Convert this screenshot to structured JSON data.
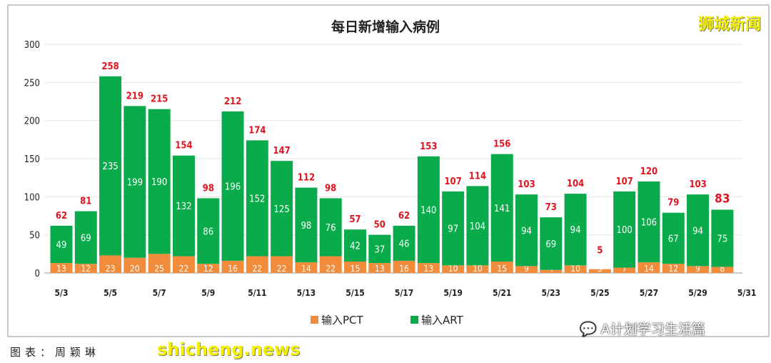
{
  "chart_data": {
    "type": "bar",
    "stacked": true,
    "title": "每日新增输入病例",
    "categories": [
      "5/3",
      "5/4",
      "5/5",
      "5/6",
      "5/7",
      "5/8",
      "5/9",
      "5/10",
      "5/11",
      "5/12",
      "5/13",
      "5/14",
      "5/15",
      "5/16",
      "5/17",
      "5/18",
      "5/19",
      "5/20",
      "5/21",
      "5/22",
      "5/23",
      "5/24",
      "5/25",
      "5/26",
      "5/27",
      "5/28",
      "5/29",
      "5/30",
      "5/31"
    ],
    "tick_labels": [
      "5/3",
      "5/5",
      "5/7",
      "5/9",
      "5/11",
      "5/13",
      "5/15",
      "5/17",
      "5/19",
      "5/21",
      "5/23",
      "5/25",
      "5/27",
      "5/29",
      "5/31"
    ],
    "series": [
      {
        "name": "输入PCT",
        "color": "#f08c3c",
        "values": [
          13,
          12,
          23,
          20,
          25,
          22,
          12,
          16,
          22,
          22,
          14,
          22,
          15,
          13,
          16,
          13,
          10,
          10,
          15,
          9,
          4,
          10,
          5,
          7,
          14,
          12,
          9,
          8,
          null
        ]
      },
      {
        "name": "输入ART",
        "color": "#0aab4a",
        "values": [
          49,
          69,
          235,
          199,
          190,
          132,
          86,
          196,
          152,
          125,
          98,
          76,
          42,
          37,
          46,
          140,
          97,
          104,
          141,
          94,
          69,
          94,
          0,
          100,
          106,
          67,
          94,
          75,
          null
        ]
      }
    ],
    "totals": [
      62,
      81,
      258,
      219,
      215,
      154,
      98,
      212,
      174,
      147,
      112,
      98,
      57,
      50,
      62,
      153,
      107,
      114,
      156,
      103,
      73,
      104,
      5,
      107,
      120,
      79,
      103,
      83,
      null
    ],
    "total_label_color": "#e0141e",
    "ylim": [
      0,
      300
    ],
    "yticks": [
      0,
      50,
      100,
      150,
      200,
      250,
      300
    ],
    "grid": true,
    "legend": "bottom"
  },
  "watermarks": {
    "top_right": "狮城新闻",
    "site": "shicheng.news",
    "wechat": "A计划学习生活篇"
  },
  "credit": "图表：周颖琳"
}
